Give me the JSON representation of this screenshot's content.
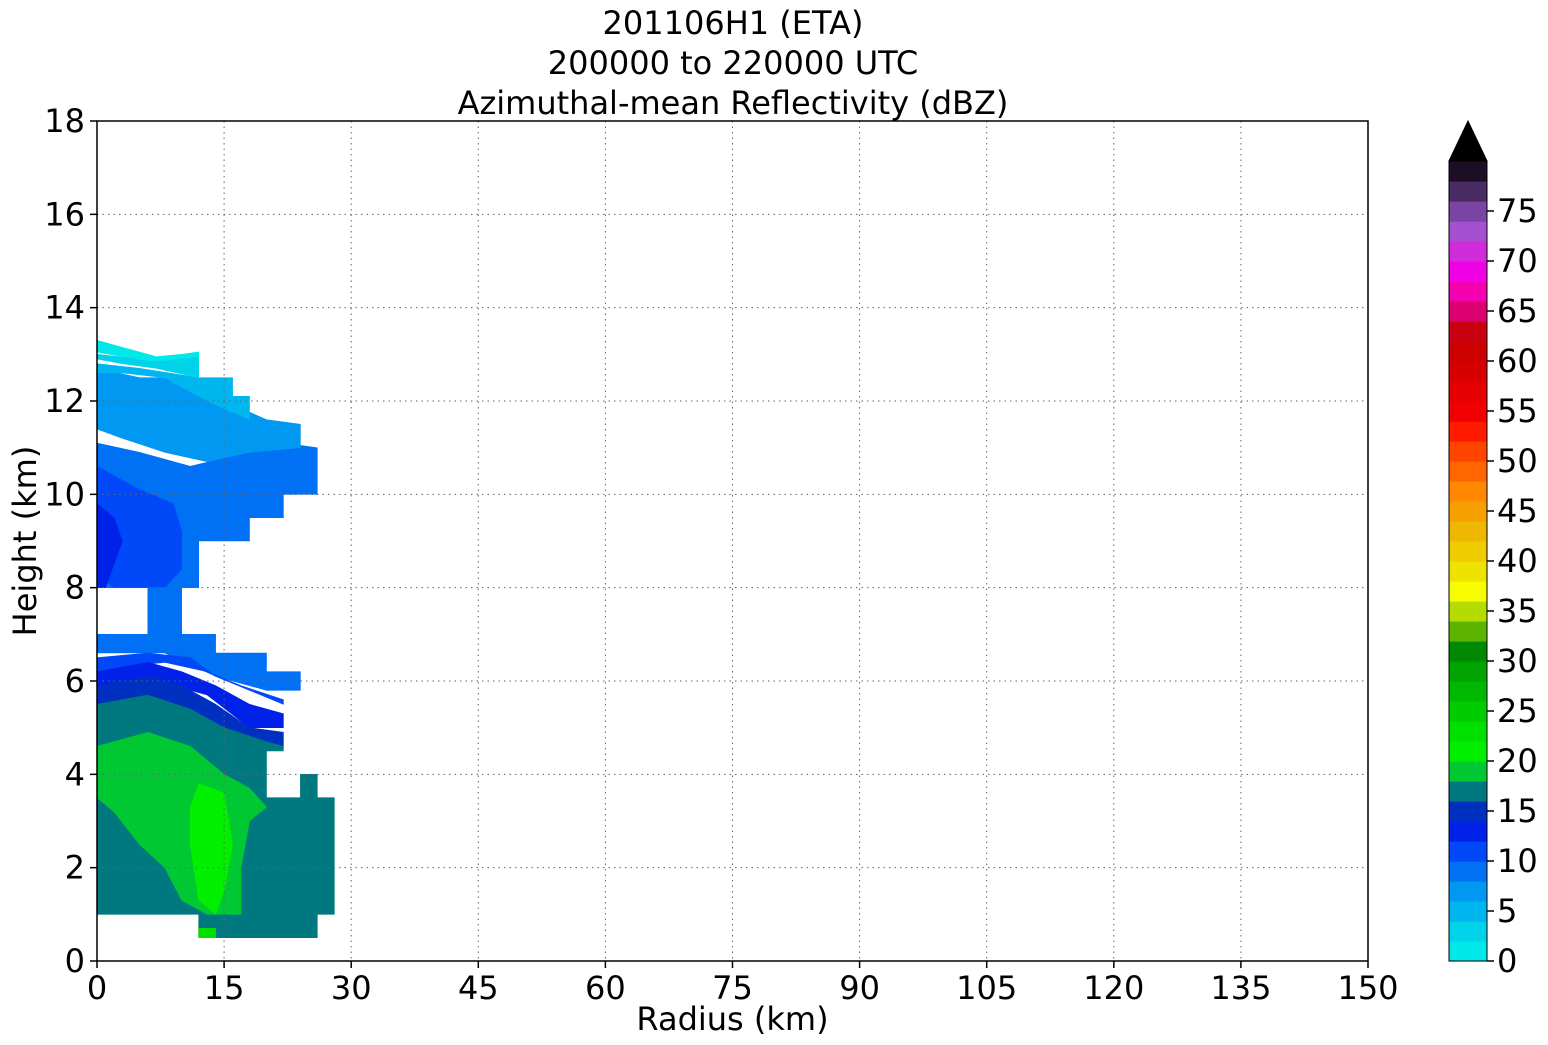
{
  "chart_data": {
    "type": "heatmap",
    "title_lines": [
      "201106H1 (ETA)",
      "200000 to 220000 UTC",
      "Azimuthal-mean Reflectivity (dBZ)"
    ],
    "xlabel": "Radius (km)",
    "ylabel": "Height (km)",
    "xlim": [
      0,
      150
    ],
    "ylim": [
      0,
      18
    ],
    "x_ticks": [
      0,
      15,
      30,
      45,
      60,
      75,
      90,
      105,
      120,
      135,
      150
    ],
    "y_ticks": [
      0,
      2,
      4,
      6,
      8,
      10,
      12,
      14,
      16,
      18
    ],
    "grid": true,
    "colorbar": {
      "min": 0,
      "max": 80,
      "step": 2.5,
      "extend": "max",
      "ticks": [
        0,
        5,
        10,
        15,
        20,
        25,
        30,
        35,
        40,
        45,
        50,
        55,
        60,
        65,
        70,
        75
      ],
      "colors": [
        "#00e8e8",
        "#00d2ea",
        "#00b6ee",
        "#0098f0",
        "#0070f4",
        "#0048f8",
        "#0022e8",
        "#0030c0",
        "#007880",
        "#00c832",
        "#00f000",
        "#00e000",
        "#00cc00",
        "#00b800",
        "#00a400",
        "#008800",
        "#5cb400",
        "#b4dc00",
        "#f8fc00",
        "#f0e200",
        "#eecc00",
        "#eeb800",
        "#f6a000",
        "#ff8800",
        "#ff6600",
        "#ff4400",
        "#ff1a00",
        "#f00000",
        "#e40000",
        "#d60000",
        "#cc0000",
        "#c80010",
        "#dc0070",
        "#f400b0",
        "#f000e4",
        "#d02cdc",
        "#a450d0",
        "#7a44a4",
        "#4a2a62",
        "#1c0e24"
      ],
      "over_color": "#000000"
    },
    "levels_dbz": [
      {
        "dbz": 1.5,
        "label": "0-2.5"
      },
      {
        "dbz": 4,
        "label": "2.5-5"
      },
      {
        "dbz": 6.5,
        "label": "5-7.5"
      },
      {
        "dbz": 9,
        "label": "7.5-10"
      },
      {
        "dbz": 11.5,
        "label": "10-12.5"
      },
      {
        "dbz": 14,
        "label": "12.5-15"
      },
      {
        "dbz": 16.5,
        "label": "15-17.5"
      },
      {
        "dbz": 19,
        "label": "17.5-20"
      },
      {
        "dbz": 21.5,
        "label": "20-22.5"
      },
      {
        "dbz": 24,
        "label": "22.5-25"
      },
      {
        "dbz": 26.5,
        "label": "25-27.5"
      },
      {
        "dbz": 29,
        "label": "27.5-30"
      }
    ],
    "regions": [
      {
        "dbz": 11.5,
        "points": [
          [
            0,
            11.1
          ],
          [
            5,
            10.9
          ],
          [
            11,
            10.6
          ],
          [
            18,
            10.9
          ],
          [
            22,
            11.1
          ],
          [
            26,
            11.0
          ],
          [
            26,
            10.0
          ],
          [
            22,
            10.0
          ],
          [
            22,
            9.5
          ],
          [
            18,
            9.5
          ],
          [
            18,
            9.0
          ],
          [
            12,
            9.0
          ],
          [
            12,
            8.0
          ],
          [
            0,
            8.0
          ]
        ]
      },
      {
        "dbz": 9,
        "points": [
          [
            0,
            12.7
          ],
          [
            5,
            12.5
          ],
          [
            10,
            12.5
          ],
          [
            15,
            12.0
          ],
          [
            20,
            11.6
          ],
          [
            24,
            11.5
          ],
          [
            24,
            11.0
          ],
          [
            18,
            10.9
          ],
          [
            13,
            10.7
          ],
          [
            8,
            10.9
          ],
          [
            3,
            11.2
          ],
          [
            0,
            11.4
          ]
        ]
      },
      {
        "dbz": 6.5,
        "points": [
          [
            0,
            12.8
          ],
          [
            5,
            12.7
          ],
          [
            12,
            12.5
          ],
          [
            16,
            12.5
          ],
          [
            16,
            12.1
          ],
          [
            18,
            12.1
          ],
          [
            18,
            11.6
          ],
          [
            13,
            12.0
          ],
          [
            8,
            12.5
          ],
          [
            3,
            12.6
          ],
          [
            0,
            12.6
          ]
        ]
      },
      {
        "dbz": 4,
        "points": [
          [
            0,
            13.0
          ],
          [
            5,
            12.9
          ],
          [
            10,
            12.9
          ],
          [
            12,
            13.0
          ],
          [
            12,
            12.5
          ],
          [
            7,
            12.7
          ],
          [
            3,
            12.8
          ],
          [
            0,
            12.9
          ]
        ]
      },
      {
        "dbz": 1.5,
        "points": [
          [
            0,
            13.3
          ],
          [
            4,
            13.1
          ],
          [
            7,
            12.95
          ],
          [
            10,
            13.0
          ],
          [
            12,
            13.05
          ],
          [
            12,
            12.95
          ],
          [
            7,
            12.85
          ],
          [
            3,
            12.95
          ],
          [
            0,
            13.05
          ]
        ]
      },
      {
        "dbz": 14,
        "points": [
          [
            0,
            10.6
          ],
          [
            5,
            10.1
          ],
          [
            9,
            9.8
          ],
          [
            10,
            9.2
          ],
          [
            10,
            8.4
          ],
          [
            8,
            8.0
          ],
          [
            2,
            8.0
          ],
          [
            0,
            8.3
          ]
        ]
      },
      {
        "dbz": 16.5,
        "points": [
          [
            0,
            9.8
          ],
          [
            2,
            9.5
          ],
          [
            3,
            9.0
          ],
          [
            2,
            8.5
          ],
          [
            1,
            8.0
          ],
          [
            0,
            8.0
          ]
        ]
      },
      {
        "dbz": 11.5,
        "points": [
          [
            6,
            8.0
          ],
          [
            10,
            8.0
          ],
          [
            10,
            7.0
          ],
          [
            14,
            7.0
          ],
          [
            14,
            6.6
          ],
          [
            20,
            6.6
          ],
          [
            20,
            6.2
          ],
          [
            24,
            6.2
          ],
          [
            24,
            5.8
          ],
          [
            20,
            5.8
          ],
          [
            14,
            6.1
          ],
          [
            8,
            6.6
          ],
          [
            0,
            6.6
          ],
          [
            0,
            7.0
          ],
          [
            6,
            7.0
          ]
        ]
      },
      {
        "dbz": 14,
        "points": [
          [
            0,
            6.5
          ],
          [
            6,
            6.6
          ],
          [
            11,
            6.5
          ],
          [
            14,
            6.1
          ],
          [
            18,
            5.8
          ],
          [
            22,
            5.5
          ],
          [
            22,
            5.6
          ],
          [
            17,
            5.9
          ],
          [
            13,
            6.2
          ],
          [
            8,
            6.4
          ],
          [
            3,
            6.3
          ],
          [
            0,
            6.2
          ]
        ]
      },
      {
        "dbz": 16.5,
        "points": [
          [
            0,
            6.2
          ],
          [
            6,
            6.4
          ],
          [
            10,
            6.2
          ],
          [
            14,
            5.9
          ],
          [
            18,
            5.5
          ],
          [
            22,
            5.3
          ],
          [
            22,
            5.0
          ],
          [
            18,
            5.0
          ],
          [
            13,
            5.7
          ],
          [
            7,
            6.0
          ],
          [
            0,
            5.9
          ]
        ]
      },
      {
        "dbz": 19,
        "points": [
          [
            0,
            5.9
          ],
          [
            6,
            6.1
          ],
          [
            10,
            5.9
          ],
          [
            14,
            5.5
          ],
          [
            18,
            5.0
          ],
          [
            22,
            4.9
          ],
          [
            22,
            4.6
          ],
          [
            17,
            4.7
          ],
          [
            12,
            5.3
          ],
          [
            6,
            5.6
          ],
          [
            0,
            5.5
          ]
        ]
      },
      {
        "dbz": 21.5,
        "points": [
          [
            0,
            5.5
          ],
          [
            6,
            5.7
          ],
          [
            11,
            5.4
          ],
          [
            15,
            5.0
          ],
          [
            20,
            4.7
          ],
          [
            22,
            4.6
          ],
          [
            22,
            4.5
          ],
          [
            20,
            4.5
          ],
          [
            20,
            3.5
          ],
          [
            24,
            3.5
          ],
          [
            24,
            4.0
          ],
          [
            26,
            4.0
          ],
          [
            26,
            3.5
          ],
          [
            28,
            3.5
          ],
          [
            28,
            1.0
          ],
          [
            26,
            1.0
          ],
          [
            26,
            0.5
          ],
          [
            12,
            0.5
          ],
          [
            12,
            1.0
          ],
          [
            0,
            1.0
          ]
        ]
      },
      {
        "dbz": 24,
        "points": [
          [
            0,
            4.6
          ],
          [
            6,
            4.9
          ],
          [
            11,
            4.6
          ],
          [
            15,
            4.0
          ],
          [
            18,
            3.7
          ],
          [
            20,
            3.3
          ],
          [
            18,
            3.0
          ],
          [
            17,
            2.0
          ],
          [
            17,
            1.0
          ],
          [
            13,
            1.0
          ],
          [
            10,
            1.3
          ],
          [
            8,
            2.0
          ],
          [
            5,
            2.5
          ],
          [
            2,
            3.2
          ],
          [
            0,
            3.5
          ]
        ]
      },
      {
        "dbz": 26.5,
        "points": [
          [
            12,
            3.8
          ],
          [
            15,
            3.6
          ],
          [
            16,
            2.5
          ],
          [
            15,
            1.5
          ],
          [
            14,
            1.0
          ],
          [
            12,
            1.3
          ],
          [
            11,
            2.5
          ],
          [
            11,
            3.3
          ]
        ]
      },
      {
        "dbz": 29,
        "points": [
          [
            12,
            0.5
          ],
          [
            14,
            0.5
          ],
          [
            14,
            0.7
          ],
          [
            12,
            0.7
          ]
        ]
      }
    ]
  }
}
